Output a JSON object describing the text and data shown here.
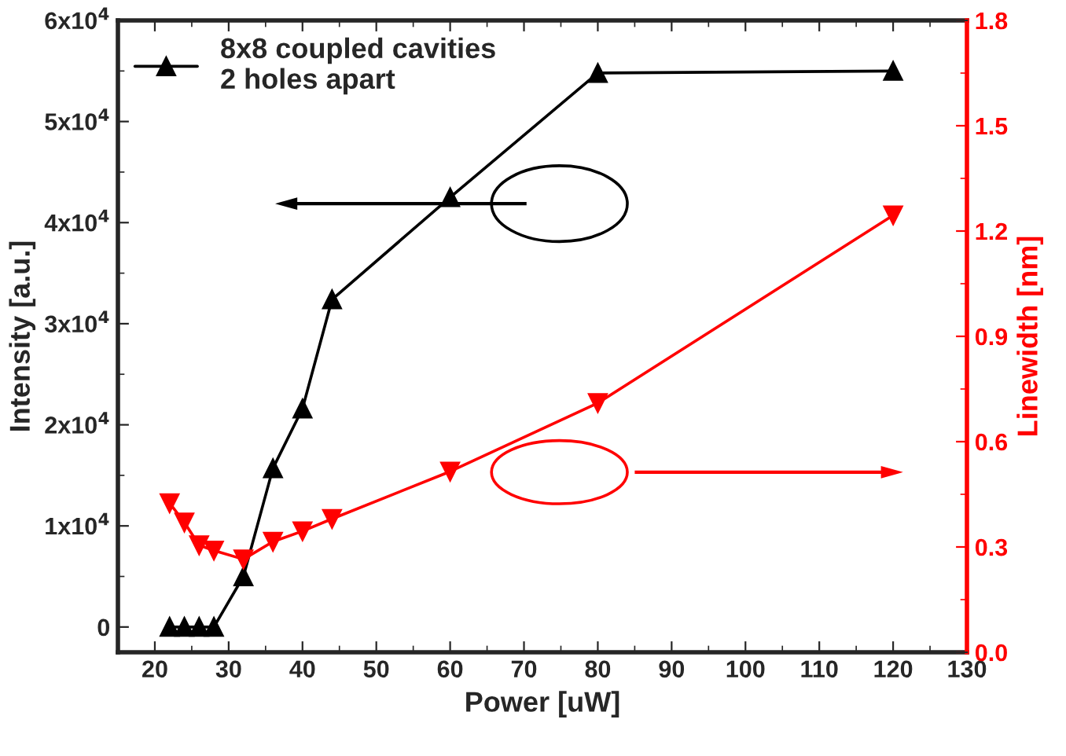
{
  "chart_data": {
    "type": "line",
    "xlabel": "Power [uW]",
    "ylabel": "Intensity [a.u.]",
    "y2label": "Linewidth [nm]",
    "x": [
      22,
      24,
      26,
      28,
      32,
      36,
      40,
      44,
      60,
      80,
      120
    ],
    "series": [
      {
        "name": "8x8 coupled cavities\n2 holes apart",
        "color": "#000000",
        "marker": "triangle",
        "values": [
          0,
          0,
          0,
          0,
          5000,
          15700,
          21600,
          32400,
          42500,
          54800,
          55000
        ]
      },
      {
        "color": "#ff0000",
        "marker": "triangle_down",
        "axis": "y2",
        "values": [
          0.425,
          0.37,
          0.305,
          0.29,
          0.265,
          0.315,
          0.345,
          0.38,
          0.515,
          0.71,
          1.245
        ]
      }
    ],
    "xlim": [
      15,
      130
    ],
    "xticks": [
      20,
      30,
      40,
      50,
      60,
      70,
      80,
      90,
      100,
      110,
      120,
      130
    ],
    "ylim": [
      -2500,
      60000
    ],
    "yticks": [
      0,
      {
        "value": 10000,
        "label": "1x10$^{4}$"
      },
      {
        "value": 20000,
        "label": "2x10$^{4}$"
      },
      {
        "value": 30000,
        "label": "3x10$^{4}$"
      },
      {
        "value": 40000,
        "label": "4x10$^{4}$"
      },
      {
        "value": 50000,
        "label": "5x10$^{4}$"
      },
      {
        "value": 60000,
        "label": "6x10$^{4}$"
      }
    ],
    "y2lim": [
      0,
      1.8
    ],
    "y2ticks": [
      {
        "value": 0,
        "label": "0.0"
      },
      0.3,
      0.6,
      0.9,
      1.2,
      1.5,
      1.8
    ],
    "legend": "top left",
    "grid": false,
    "line_style": "solid"
  }
}
